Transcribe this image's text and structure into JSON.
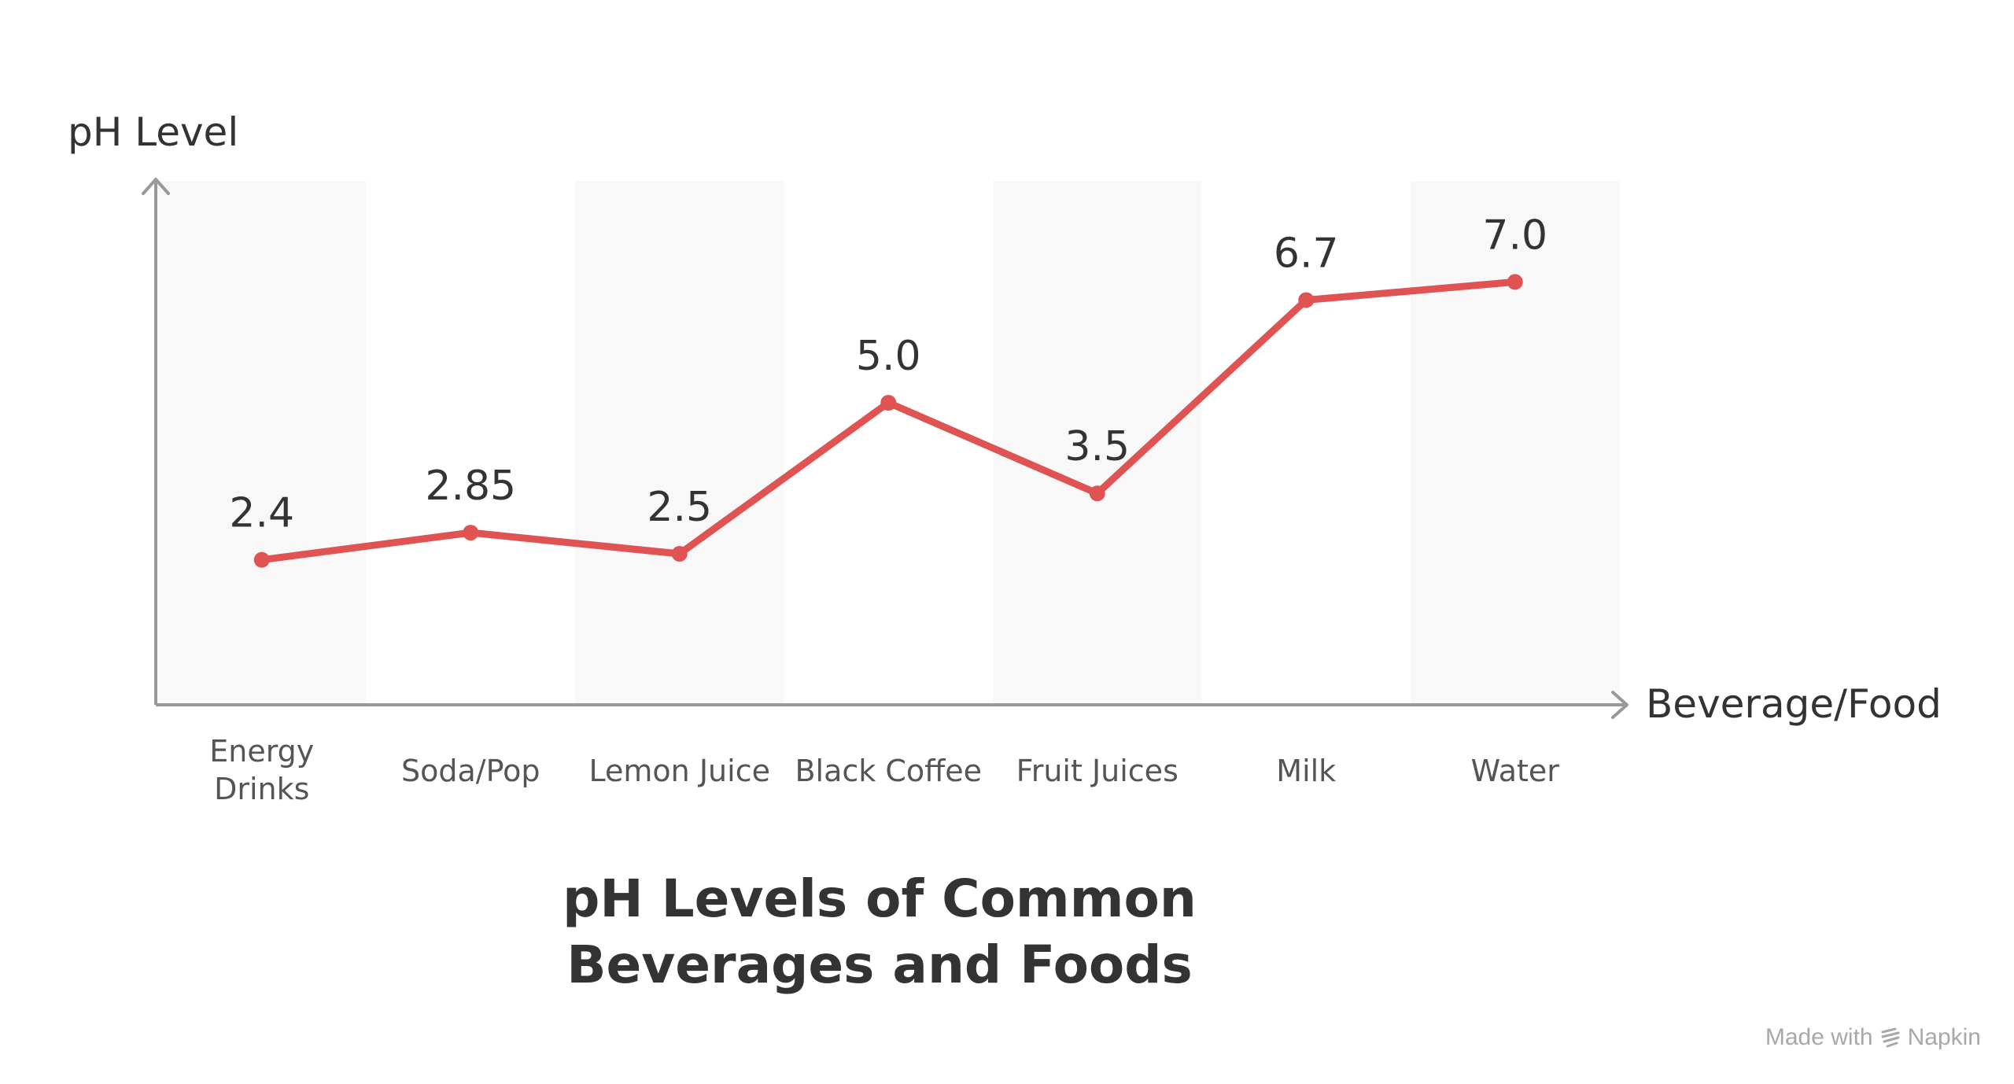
{
  "chart_data": {
    "type": "line",
    "title": "pH Levels of Common Beverages and Foods",
    "title_lines": [
      "pH Levels of Common",
      "Beverages and Foods"
    ],
    "xlabel": "Beverage/Food",
    "ylabel": "pH Level",
    "categories": [
      "Energy Drinks",
      "Soda/Pop",
      "Lemon Juice",
      "Black Coffee",
      "Fruit Juices",
      "Milk",
      "Water"
    ],
    "category_lines": [
      [
        "Energy",
        "Drinks"
      ],
      [
        "Soda/Pop"
      ],
      [
        "Lemon Juice"
      ],
      [
        "Black Coffee"
      ],
      [
        "Fruit Juices"
      ],
      [
        "Milk"
      ],
      [
        "Water"
      ]
    ],
    "values": [
      2.4,
      2.85,
      2.5,
      5.0,
      3.5,
      6.7,
      7.0
    ],
    "value_labels": [
      "2.4",
      "2.85",
      "2.5",
      "5.0",
      "3.5",
      "6.7",
      "7.0"
    ],
    "ylim": [
      0,
      7.5
    ],
    "grid": false,
    "legend": "none",
    "colors": {
      "line": "#e05353",
      "band": "#f8f8f8",
      "axis": "#999999",
      "text": "#333333"
    }
  },
  "watermark": {
    "prefix": "Made with",
    "brand": "Napkin",
    "icon": "napkin-logo-icon"
  }
}
